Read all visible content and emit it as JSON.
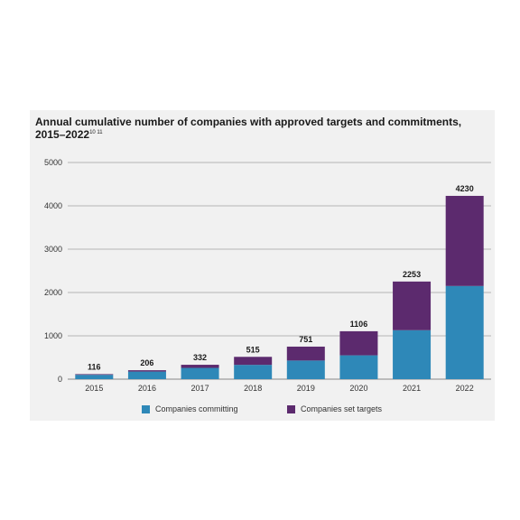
{
  "chart_data": {
    "type": "bar",
    "stacked": true,
    "title": "Annual cumulative number of companies with approved targets and commitments, 2015–2022",
    "title_superscript": "10 11",
    "categories": [
      "2015",
      "2016",
      "2017",
      "2018",
      "2019",
      "2020",
      "2021",
      "2022"
    ],
    "totals": [
      116,
      206,
      332,
      515,
      751,
      1106,
      2253,
      4230
    ],
    "total_labels": [
      "116",
      "206",
      "332",
      "515",
      "751",
      "1106",
      "2253",
      "4230"
    ],
    "series": [
      {
        "name": "Companies committing",
        "color": "#2e88b8",
        "values": [
          100,
          175,
          260,
          330,
          430,
          550,
          1130,
          2150
        ]
      },
      {
        "name": "Companies set targets",
        "color": "#5c2a6e",
        "values": [
          16,
          31,
          72,
          185,
          321,
          556,
          1123,
          2080
        ]
      }
    ],
    "ylim": [
      0,
      5000
    ],
    "yticks": [
      0,
      1000,
      2000,
      3000,
      4000,
      5000
    ],
    "ytick_labels": [
      "0",
      "1000",
      "2000",
      "3000",
      "4000",
      "5000"
    ],
    "grid": true,
    "legend_position": "bottom"
  }
}
